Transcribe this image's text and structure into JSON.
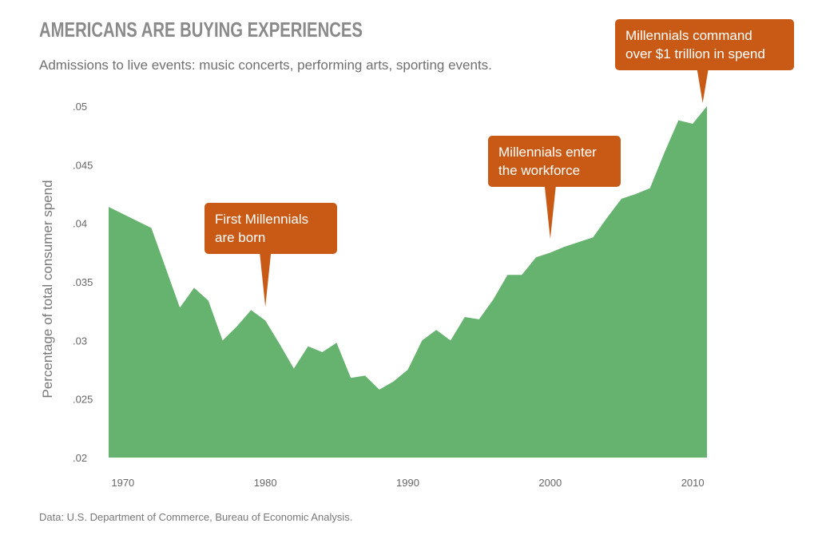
{
  "header": {
    "title": "AMERICANS ARE BUYING EXPERIENCES",
    "subtitle": "Admissions to live events: music concerts, performing arts, sporting events."
  },
  "footer": {
    "source": "Data: U.S. Department of Commerce, Bureau of Economic Analysis."
  },
  "chart_data": {
    "type": "area",
    "title": "AMERICANS ARE BUYING EXPERIENCES",
    "subtitle": "Admissions to live events: music concerts, performing arts, sporting events.",
    "xlabel": "",
    "ylabel": "Percentage of total consumer spend",
    "xlim": [
      1968,
      2011
    ],
    "ylim": [
      0.02,
      0.05
    ],
    "x_ticks": [
      1970,
      1980,
      1990,
      2000,
      2010
    ],
    "x_tick_labels": [
      "1970",
      "1980",
      "1990",
      "2000",
      "2010"
    ],
    "y_ticks": [
      0.02,
      0.025,
      0.03,
      0.035,
      0.04,
      0.045,
      0.05
    ],
    "y_tick_labels": [
      ".02",
      ".025",
      ".03",
      ".035",
      ".04",
      ".045",
      ".05"
    ],
    "grid": false,
    "color": "#66b36f",
    "series": [
      {
        "x": [
          1969,
          1972,
          1974,
          1975,
          1976,
          1977,
          1978,
          1979,
          1980,
          1981,
          1982,
          1983,
          1984,
          1985,
          1986,
          1987,
          1988,
          1989,
          1990,
          1991,
          1992,
          1993,
          1994,
          1995,
          1996,
          1997,
          1998,
          1999,
          2000,
          2001,
          2002,
          2003,
          2004,
          2005,
          2006,
          2007,
          2008,
          2009,
          2010,
          2011
        ],
        "y": [
          0.0414,
          0.0396,
          0.0328,
          0.0345,
          0.0334,
          0.03,
          0.0312,
          0.0326,
          0.0317,
          0.0297,
          0.0276,
          0.0295,
          0.029,
          0.0298,
          0.0268,
          0.027,
          0.0258,
          0.0265,
          0.0275,
          0.03,
          0.0309,
          0.03,
          0.032,
          0.0318,
          0.0335,
          0.0356,
          0.0356,
          0.0371,
          0.0375,
          0.038,
          0.0384,
          0.0388,
          0.0405,
          0.0421,
          0.0425,
          0.043,
          0.046,
          0.0488,
          0.0485,
          0.05
        ]
      }
    ],
    "annotations": [
      {
        "id": "born",
        "lines": [
          "First Millennials",
          "are born"
        ],
        "x": 1980,
        "y": 0.0326
      },
      {
        "id": "workforce",
        "lines": [
          "Millennials enter",
          "the workforce"
        ],
        "x": 2000,
        "y": 0.0384
      },
      {
        "id": "trillion",
        "lines": [
          "Millennials command",
          "over $1 trillion in spend"
        ],
        "x": 2010.7,
        "y": 0.05
      }
    ]
  }
}
